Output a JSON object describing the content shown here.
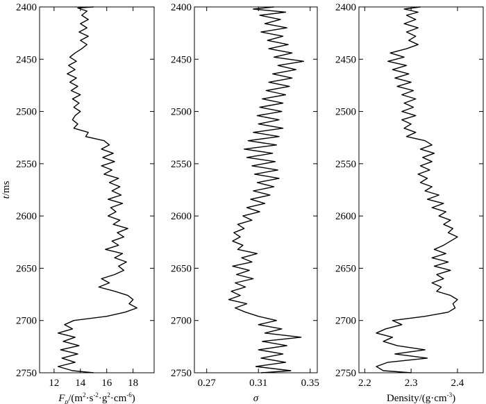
{
  "chart_data": [
    {
      "type": "line",
      "orientation": "vertical",
      "panel": "Fp",
      "ylabel_html": "<tspan font-style=\"italic\">t</tspan>/ms",
      "ylabel": "t/ms",
      "xlabel": "Fρ/(m2·s-2·g2·cm-6)",
      "xlabel_html": "<tspan font-style=\"italic\">F</tspan><tspan font-style=\"italic\" font-size=\"10\" dy=\"4\">ρ</tspan><tspan dy=\"-4\">/(m</tspan><tspan font-size=\"9\" dy=\"-6\">2</tspan><tspan dy=\"6\">·s</tspan><tspan font-size=\"9\" dy=\"-6\">-2</tspan><tspan dy=\"6\">·g</tspan><tspan font-size=\"9\" dy=\"-6\">2</tspan><tspan dy=\"6\">·cm</tspan><tspan font-size=\"9\" dy=\"-6\">-6</tspan><tspan dy=\"6\">)</tspan>",
      "xlim": [
        10.9,
        19.6
      ],
      "ylim": [
        2400,
        2750
      ],
      "xticks": [
        12,
        14,
        16,
        18
      ],
      "yticks": [
        2400,
        2450,
        2500,
        2550,
        2600,
        2650,
        2700,
        2750
      ],
      "y_inverted": true,
      "time": [
        2400,
        2401,
        2404,
        2408,
        2412,
        2416,
        2420,
        2424,
        2428,
        2432,
        2436,
        2440,
        2444,
        2448,
        2452,
        2456,
        2460,
        2464,
        2468,
        2472,
        2476,
        2480,
        2484,
        2488,
        2492,
        2496,
        2500,
        2504,
        2508,
        2512,
        2516,
        2520,
        2524,
        2528,
        2532,
        2536,
        2540,
        2544,
        2548,
        2552,
        2556,
        2560,
        2564,
        2568,
        2572,
        2576,
        2580,
        2584,
        2588,
        2592,
        2596,
        2600,
        2604,
        2608,
        2612,
        2616,
        2620,
        2624,
        2628,
        2632,
        2636,
        2640,
        2644,
        2648,
        2652,
        2656,
        2660,
        2664,
        2668,
        2672,
        2676,
        2680,
        2684,
        2688,
        2692,
        2696,
        2700,
        2704,
        2708,
        2712,
        2716,
        2720,
        2724,
        2728,
        2732,
        2736,
        2740,
        2744,
        2748,
        2750
      ],
      "values": [
        15.0,
        13.8,
        14.5,
        14.1,
        14.6,
        14.0,
        14.5,
        13.9,
        14.6,
        14.0,
        14.5,
        14.1,
        13.6,
        13.2,
        13.7,
        13.1,
        13.6,
        13.0,
        13.7,
        13.2,
        13.8,
        13.3,
        14.0,
        13.4,
        13.9,
        13.5,
        14.0,
        13.6,
        13.4,
        13.8,
        13.5,
        14.6,
        14.4,
        15.8,
        16.2,
        15.6,
        16.5,
        15.7,
        16.6,
        15.6,
        16.4,
        15.8,
        16.9,
        16.2,
        17.0,
        16.4,
        17.1,
        16.1,
        17.2,
        16.3,
        16.7,
        16.1,
        17.0,
        16.5,
        17.6,
        16.8,
        17.3,
        16.4,
        16.9,
        15.9,
        17.2,
        16.6,
        17.5,
        16.9,
        17.3,
        16.6,
        15.6,
        16.2,
        15.4,
        16.6,
        17.6,
        18.0,
        17.7,
        18.3,
        17.4,
        16.0,
        13.5,
        12.8,
        13.4,
        12.3,
        13.6,
        12.7,
        13.9,
        12.5,
        13.8,
        12.6,
        13.6,
        12.3,
        13.4,
        15.0
      ]
    },
    {
      "type": "line",
      "orientation": "vertical",
      "panel": "sigma",
      "xlabel": "σ",
      "xlabel_html": "<tspan font-style=\"italic\">σ</tspan>",
      "xlim": [
        0.2605,
        0.3555
      ],
      "ylim": [
        2400,
        2750
      ],
      "xticks": [
        0.27,
        0.31,
        0.35
      ],
      "xticklabels": [
        "0.27",
        "0.31",
        "0.35"
      ],
      "yticks": [
        2400,
        2450,
        2500,
        2550,
        2600,
        2650,
        2700,
        2750
      ],
      "y_inverted": true,
      "time": [
        2400,
        2402,
        2405,
        2408,
        2412,
        2416,
        2420,
        2424,
        2428,
        2432,
        2436,
        2440,
        2444,
        2448,
        2452,
        2456,
        2460,
        2464,
        2468,
        2472,
        2476,
        2480,
        2484,
        2488,
        2492,
        2496,
        2500,
        2504,
        2508,
        2512,
        2516,
        2520,
        2524,
        2528,
        2532,
        2536,
        2540,
        2544,
        2548,
        2552,
        2556,
        2560,
        2564,
        2568,
        2572,
        2576,
        2580,
        2584,
        2588,
        2592,
        2596,
        2600,
        2604,
        2608,
        2612,
        2616,
        2620,
        2624,
        2628,
        2632,
        2636,
        2640,
        2644,
        2648,
        2652,
        2656,
        2660,
        2664,
        2668,
        2672,
        2676,
        2680,
        2684,
        2688,
        2692,
        2696,
        2700,
        2704,
        2708,
        2712,
        2716,
        2720,
        2724,
        2728,
        2732,
        2736,
        2740,
        2744,
        2748,
        2750
      ],
      "values": [
        0.322,
        0.306,
        0.331,
        0.311,
        0.327,
        0.315,
        0.332,
        0.312,
        0.329,
        0.317,
        0.333,
        0.318,
        0.336,
        0.322,
        0.345,
        0.325,
        0.339,
        0.321,
        0.336,
        0.318,
        0.334,
        0.316,
        0.331,
        0.313,
        0.329,
        0.311,
        0.328,
        0.309,
        0.326,
        0.31,
        0.329,
        0.306,
        0.326,
        0.302,
        0.324,
        0.299,
        0.321,
        0.301,
        0.323,
        0.305,
        0.325,
        0.307,
        0.326,
        0.309,
        0.322,
        0.306,
        0.319,
        0.304,
        0.315,
        0.301,
        0.311,
        0.298,
        0.305,
        0.294,
        0.299,
        0.291,
        0.296,
        0.29,
        0.298,
        0.294,
        0.309,
        0.297,
        0.305,
        0.29,
        0.303,
        0.293,
        0.306,
        0.292,
        0.3,
        0.289,
        0.296,
        0.287,
        0.301,
        0.292,
        0.3,
        0.31,
        0.324,
        0.31,
        0.328,
        0.315,
        0.343,
        0.313,
        0.332,
        0.31,
        0.329,
        0.312,
        0.331,
        0.308,
        0.335,
        0.312
      ]
    },
    {
      "type": "line",
      "orientation": "vertical",
      "panel": "density",
      "xlabel": "Density/(g·cm-3)",
      "xlabel_html": "Density/(g·cm<tspan font-size=\"9\" dy=\"-6\">-3</tspan><tspan dy=\"6\">)</tspan>",
      "xlim": [
        2.1875,
        2.4555
      ],
      "ylim": [
        2400,
        2750
      ],
      "xticks": [
        2.2,
        2.3,
        2.4
      ],
      "xticklabels": [
        "2.2",
        "2.3",
        "2.4"
      ],
      "yticks": [
        2400,
        2450,
        2500,
        2550,
        2600,
        2650,
        2700,
        2750
      ],
      "y_inverted": true,
      "time": [
        2400,
        2402,
        2405,
        2408,
        2412,
        2416,
        2420,
        2424,
        2428,
        2432,
        2436,
        2440,
        2444,
        2448,
        2452,
        2456,
        2460,
        2464,
        2468,
        2472,
        2476,
        2480,
        2484,
        2488,
        2492,
        2496,
        2500,
        2504,
        2508,
        2512,
        2516,
        2520,
        2524,
        2528,
        2532,
        2536,
        2540,
        2544,
        2548,
        2552,
        2556,
        2560,
        2564,
        2568,
        2572,
        2576,
        2580,
        2584,
        2588,
        2592,
        2596,
        2600,
        2604,
        2608,
        2612,
        2616,
        2620,
        2624,
        2628,
        2632,
        2636,
        2640,
        2644,
        2648,
        2652,
        2656,
        2660,
        2664,
        2668,
        2672,
        2676,
        2680,
        2684,
        2688,
        2692,
        2696,
        2700,
        2704,
        2708,
        2712,
        2716,
        2720,
        2724,
        2728,
        2732,
        2736,
        2740,
        2744,
        2748,
        2750
      ],
      "values": [
        2.32,
        2.285,
        2.315,
        2.29,
        2.31,
        2.285,
        2.315,
        2.29,
        2.31,
        2.295,
        2.315,
        2.29,
        2.255,
        2.285,
        2.25,
        2.29,
        2.26,
        2.295,
        2.265,
        2.3,
        2.27,
        2.305,
        2.28,
        2.31,
        2.285,
        2.305,
        2.28,
        2.31,
        2.28,
        2.3,
        2.285,
        2.31,
        2.29,
        2.33,
        2.345,
        2.32,
        2.35,
        2.325,
        2.345,
        2.32,
        2.34,
        2.315,
        2.335,
        2.32,
        2.345,
        2.33,
        2.36,
        2.335,
        2.37,
        2.345,
        2.375,
        2.36,
        2.385,
        2.37,
        2.39,
        2.38,
        2.4,
        2.385,
        2.37,
        2.35,
        2.375,
        2.345,
        2.38,
        2.35,
        2.385,
        2.355,
        2.37,
        2.345,
        2.365,
        2.355,
        2.385,
        2.4,
        2.39,
        2.395,
        2.38,
        2.33,
        2.26,
        2.28,
        2.245,
        2.225,
        2.26,
        2.24,
        2.27,
        2.33,
        2.265,
        2.335,
        2.25,
        2.225,
        2.24,
        2.3
      ]
    }
  ]
}
